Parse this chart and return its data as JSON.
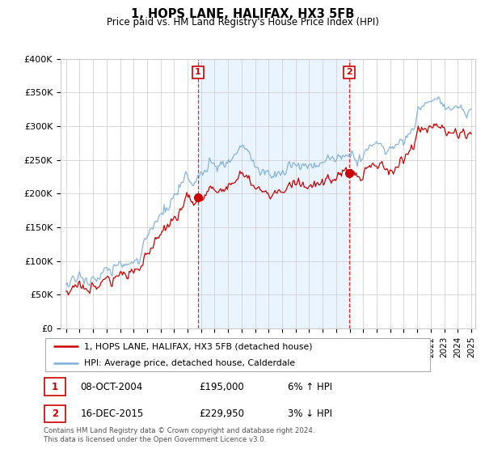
{
  "title": "1, HOPS LANE, HALIFAX, HX3 5FB",
  "subtitle": "Price paid vs. HM Land Registry's House Price Index (HPI)",
  "legend_line1": "1, HOPS LANE, HALIFAX, HX3 5FB (detached house)",
  "legend_line2": "HPI: Average price, detached house, Calderdale",
  "footer1": "Contains HM Land Registry data © Crown copyright and database right 2024.",
  "footer2": "This data is licensed under the Open Government Licence v3.0.",
  "table_rows": [
    {
      "num": "1",
      "date": "08-OCT-2004",
      "price": "£195,000",
      "hpi": "6% ↑ HPI"
    },
    {
      "num": "2",
      "date": "16-DEC-2015",
      "price": "£229,950",
      "hpi": "3% ↓ HPI"
    }
  ],
  "sale1_year": 2004.77,
  "sale1_price": 195000,
  "sale2_year": 2015.96,
  "sale2_price": 229950,
  "ylim": [
    0,
    400000
  ],
  "yticks": [
    0,
    50000,
    100000,
    150000,
    200000,
    250000,
    300000,
    350000,
    400000
  ],
  "ytick_labels": [
    "£0",
    "£50K",
    "£100K",
    "£150K",
    "£200K",
    "£250K",
    "£300K",
    "£350K",
    "£400K"
  ],
  "color_red": "#cc0000",
  "color_blue": "#7aaddb",
  "color_shade": "#ddeeff",
  "color_bg": "#ffffff",
  "color_grid": "#cccccc",
  "color_label_box": "#cc0000"
}
